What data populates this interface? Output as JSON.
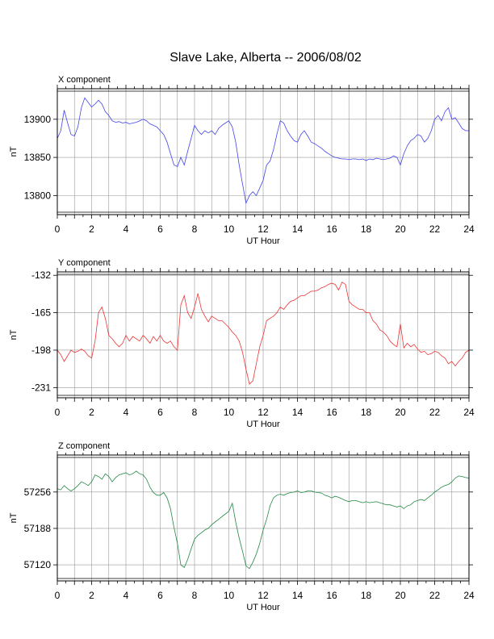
{
  "title": "Slave Lake, Alberta -- 2006/08/02",
  "colors": {
    "x": "#4444ee",
    "y": "#ee3333",
    "z": "#228844",
    "grid": "#999999"
  },
  "chart_data": [
    {
      "type": "line",
      "panel_label": "X component",
      "xlabel": "UT Hour",
      "ylabel": "nT",
      "xlim": [
        0,
        24
      ],
      "ylim": [
        13775,
        13940
      ],
      "xticks": [
        0,
        2,
        4,
        6,
        8,
        10,
        12,
        14,
        16,
        18,
        20,
        22,
        24
      ],
      "yticks": [
        13800,
        13850,
        13900
      ],
      "grid": true,
      "series": [
        {
          "color": "#4444ee",
          "x": [
            0,
            0.2,
            0.4,
            0.6,
            0.8,
            1,
            1.2,
            1.4,
            1.6,
            1.8,
            2,
            2.2,
            2.4,
            2.6,
            2.8,
            3,
            3.2,
            3.4,
            3.6,
            3.8,
            4,
            4.2,
            4.4,
            4.6,
            4.8,
            5,
            5.2,
            5.4,
            5.6,
            5.8,
            6,
            6.2,
            6.4,
            6.6,
            6.8,
            7,
            7.2,
            7.4,
            7.6,
            7.8,
            8,
            8.2,
            8.4,
            8.6,
            8.8,
            9,
            9.2,
            9.4,
            9.6,
            9.8,
            10,
            10.2,
            10.4,
            10.6,
            10.8,
            11,
            11.2,
            11.4,
            11.6,
            11.8,
            12,
            12.2,
            12.4,
            12.6,
            12.8,
            13,
            13.2,
            13.4,
            13.6,
            13.8,
            14,
            14.2,
            14.4,
            14.6,
            14.8,
            15,
            15.2,
            15.4,
            15.6,
            15.8,
            16,
            16.2,
            16.4,
            16.6,
            16.8,
            17,
            17.2,
            17.4,
            17.6,
            17.8,
            18,
            18.2,
            18.4,
            18.6,
            18.8,
            19,
            19.2,
            19.4,
            19.6,
            19.8,
            20,
            20.2,
            20.4,
            20.6,
            20.8,
            21,
            21.2,
            21.4,
            21.6,
            21.8,
            22,
            22.2,
            22.4,
            22.6,
            22.8,
            23,
            23.2,
            23.4,
            23.6,
            23.8,
            24
          ],
          "values": [
            13875,
            13885,
            13912,
            13895,
            13880,
            13878,
            13890,
            13915,
            13928,
            13922,
            13916,
            13920,
            13925,
            13920,
            13910,
            13905,
            13898,
            13896,
            13897,
            13895,
            13896,
            13894,
            13895,
            13896,
            13898,
            13900,
            13898,
            13894,
            13892,
            13890,
            13885,
            13880,
            13870,
            13855,
            13840,
            13838,
            13850,
            13840,
            13858,
            13875,
            13892,
            13885,
            13880,
            13885,
            13882,
            13885,
            13880,
            13888,
            13892,
            13895,
            13898,
            13890,
            13870,
            13840,
            13815,
            13790,
            13800,
            13805,
            13800,
            13810,
            13820,
            13840,
            13845,
            13860,
            13880,
            13898,
            13895,
            13885,
            13878,
            13872,
            13870,
            13880,
            13885,
            13878,
            13870,
            13868,
            13865,
            13862,
            13858,
            13855,
            13852,
            13850,
            13849,
            13848,
            13848,
            13847,
            13848,
            13848,
            13847,
            13848,
            13846,
            13848,
            13847,
            13849,
            13848,
            13847,
            13848,
            13849,
            13852,
            13850,
            13840,
            13855,
            13865,
            13872,
            13875,
            13880,
            13878,
            13870,
            13875,
            13885,
            13900,
            13905,
            13898,
            13910,
            13915,
            13900,
            13902,
            13895,
            13888,
            13885,
            13885
          ]
        }
      ]
    },
    {
      "type": "line",
      "panel_label": "Y component",
      "xlabel": "UT Hour",
      "ylabel": "nT",
      "xlim": [
        0,
        24
      ],
      "ylim": [
        -240,
        -129
      ],
      "xticks": [
        0,
        2,
        4,
        6,
        8,
        10,
        12,
        14,
        16,
        18,
        20,
        22,
        24
      ],
      "yticks": [
        -231,
        -198,
        -165,
        -132
      ],
      "grid": true,
      "series": [
        {
          "color": "#ee3333",
          "x": [
            0,
            0.2,
            0.4,
            0.6,
            0.8,
            1,
            1.2,
            1.4,
            1.6,
            1.8,
            2,
            2.2,
            2.4,
            2.6,
            2.8,
            3,
            3.2,
            3.4,
            3.6,
            3.8,
            4,
            4.2,
            4.4,
            4.6,
            4.8,
            5,
            5.2,
            5.4,
            5.6,
            5.8,
            6,
            6.2,
            6.4,
            6.6,
            6.8,
            7,
            7.2,
            7.4,
            7.6,
            7.8,
            8,
            8.2,
            8.4,
            8.6,
            8.8,
            9,
            9.2,
            9.4,
            9.6,
            9.8,
            10,
            10.2,
            10.4,
            10.6,
            10.8,
            11,
            11.2,
            11.4,
            11.6,
            11.8,
            12,
            12.2,
            12.4,
            12.6,
            12.8,
            13,
            13.2,
            13.4,
            13.6,
            13.8,
            14,
            14.2,
            14.4,
            14.6,
            14.8,
            15,
            15.2,
            15.4,
            15.6,
            15.8,
            16,
            16.2,
            16.4,
            16.6,
            16.8,
            17,
            17.2,
            17.4,
            17.6,
            17.8,
            18,
            18.2,
            18.4,
            18.6,
            18.8,
            19,
            19.2,
            19.4,
            19.6,
            19.8,
            20,
            20.2,
            20.4,
            20.6,
            20.8,
            21,
            21.2,
            21.4,
            21.6,
            21.8,
            22,
            22.2,
            22.4,
            22.6,
            22.8,
            23,
            23.2,
            23.4,
            23.6,
            23.8,
            24
          ],
          "values": [
            -198,
            -202,
            -208,
            -203,
            -198,
            -200,
            -199,
            -197,
            -199,
            -203,
            -205,
            -190,
            -165,
            -160,
            -170,
            -185,
            -188,
            -192,
            -195,
            -192,
            -185,
            -190,
            -186,
            -188,
            -190,
            -185,
            -188,
            -192,
            -186,
            -190,
            -185,
            -190,
            -192,
            -190,
            -195,
            -198,
            -158,
            -150,
            -165,
            -170,
            -160,
            -148,
            -162,
            -168,
            -173,
            -168,
            -170,
            -172,
            -172,
            -175,
            -178,
            -182,
            -185,
            -190,
            -200,
            -215,
            -228,
            -225,
            -210,
            -195,
            -185,
            -172,
            -170,
            -168,
            -165,
            -160,
            -162,
            -158,
            -155,
            -154,
            -152,
            -150,
            -150,
            -148,
            -146,
            -146,
            -145,
            -143,
            -142,
            -140,
            -139,
            -140,
            -145,
            -138,
            -140,
            -155,
            -158,
            -160,
            -162,
            -162,
            -165,
            -165,
            -172,
            -175,
            -180,
            -182,
            -185,
            -190,
            -193,
            -195,
            -175,
            -196,
            -192,
            -195,
            -193,
            -197,
            -200,
            -199,
            -202,
            -201,
            -199,
            -200,
            -203,
            -205,
            -210,
            -208,
            -212,
            -208,
            -205,
            -200,
            -198
          ]
        }
      ]
    },
    {
      "type": "line",
      "panel_label": "Z component",
      "xlabel": "UT Hour",
      "ylabel": "nT",
      "xlim": [
        0,
        24
      ],
      "ylim": [
        57090,
        57325
      ],
      "xticks": [
        0,
        2,
        4,
        6,
        8,
        10,
        12,
        14,
        16,
        18,
        20,
        22,
        24
      ],
      "yticks": [
        57120,
        57188,
        57256
      ],
      "grid": true,
      "series": [
        {
          "color": "#228844",
          "x": [
            0,
            0.2,
            0.4,
            0.6,
            0.8,
            1,
            1.2,
            1.4,
            1.6,
            1.8,
            2,
            2.2,
            2.4,
            2.6,
            2.8,
            3,
            3.2,
            3.4,
            3.6,
            3.8,
            4,
            4.2,
            4.4,
            4.6,
            4.8,
            5,
            5.2,
            5.4,
            5.6,
            5.8,
            6,
            6.2,
            6.4,
            6.6,
            6.8,
            7,
            7.2,
            7.4,
            7.6,
            7.8,
            8,
            8.2,
            8.4,
            8.6,
            8.8,
            9,
            9.2,
            9.4,
            9.6,
            9.8,
            10,
            10.2,
            10.4,
            10.6,
            10.8,
            11,
            11.2,
            11.4,
            11.6,
            11.8,
            12,
            12.2,
            12.4,
            12.6,
            12.8,
            13,
            13.2,
            13.4,
            13.6,
            13.8,
            14,
            14.2,
            14.4,
            14.6,
            14.8,
            15,
            15.2,
            15.4,
            15.6,
            15.8,
            16,
            16.2,
            16.4,
            16.6,
            16.8,
            17,
            17.2,
            17.4,
            17.6,
            17.8,
            18,
            18.2,
            18.4,
            18.6,
            18.8,
            19,
            19.2,
            19.4,
            19.6,
            19.8,
            20,
            20.2,
            20.4,
            20.6,
            20.8,
            21,
            21.2,
            21.4,
            21.6,
            21.8,
            22,
            22.2,
            22.4,
            22.6,
            22.8,
            23,
            23.2,
            23.4,
            23.6,
            23.8,
            24
          ],
          "values": [
            57262,
            57260,
            57268,
            57262,
            57258,
            57262,
            57268,
            57275,
            57272,
            57268,
            57275,
            57288,
            57285,
            57280,
            57290,
            57285,
            57275,
            57283,
            57288,
            57290,
            57292,
            57288,
            57290,
            57295,
            57290,
            57288,
            57280,
            57265,
            57255,
            57250,
            57250,
            57255,
            57245,
            57225,
            57190,
            57160,
            57120,
            57115,
            57130,
            57150,
            57168,
            57175,
            57180,
            57185,
            57188,
            57195,
            57200,
            57205,
            57210,
            57215,
            57220,
            57235,
            57200,
            57170,
            57145,
            57118,
            57113,
            57125,
            57140,
            57160,
            57185,
            57205,
            57230,
            57245,
            57250,
            57252,
            57250,
            57253,
            57255,
            57256,
            57258,
            57255,
            57256,
            57258,
            57258,
            57256,
            57255,
            57254,
            57250,
            57248,
            57245,
            57248,
            57246,
            57243,
            57240,
            57238,
            57240,
            57240,
            57238,
            57236,
            57238,
            57236,
            57237,
            57238,
            57236,
            57234,
            57232,
            57232,
            57230,
            57228,
            57230,
            57225,
            57230,
            57232,
            57238,
            57240,
            57242,
            57240,
            57245,
            57250,
            57256,
            57260,
            57265,
            57268,
            57270,
            57275,
            57282,
            57286,
            57285,
            57283,
            57282
          ]
        }
      ]
    }
  ]
}
